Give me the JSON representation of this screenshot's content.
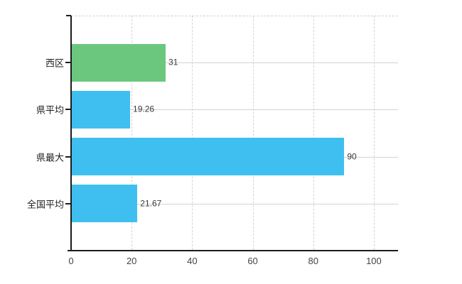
{
  "window": {
    "background": "#ffffff"
  },
  "chart_data": {
    "type": "bar",
    "orientation": "horizontal",
    "title": "",
    "xlabel": "",
    "ylabel": "",
    "legend": "none",
    "categories": [
      "西区",
      "県平均",
      "県最大",
      "全国平均"
    ],
    "values": [
      31,
      19.26,
      90,
      21.67
    ],
    "value_labels": [
      "31",
      "19.26",
      "90",
      "21.67"
    ],
    "bar_colors": [
      "#6bc77d",
      "#3fbfef",
      "#3fbfef",
      "#3fbfef"
    ],
    "x_tick_values": [
      0,
      20,
      40,
      60,
      80,
      100
    ],
    "x_tick_labels": [
      "0",
      "20",
      "40",
      "60",
      "80",
      "100"
    ],
    "xlim": [
      0,
      108
    ],
    "grid": {
      "vertical_style": "dashed",
      "horizontal_style": "solid",
      "top_border_style": "dashed"
    },
    "colors": {
      "axis": "#1c1c1c",
      "grid_horizontal": "#cfd4cf",
      "grid_vertical": "#d4d4d4",
      "category_label": "#222222",
      "value_label": "#3a3a3a",
      "tick_label": "#444444",
      "bar_green": "#6bc77d",
      "bar_blue": "#3fbfef",
      "plot_background": "#ffffff"
    }
  }
}
